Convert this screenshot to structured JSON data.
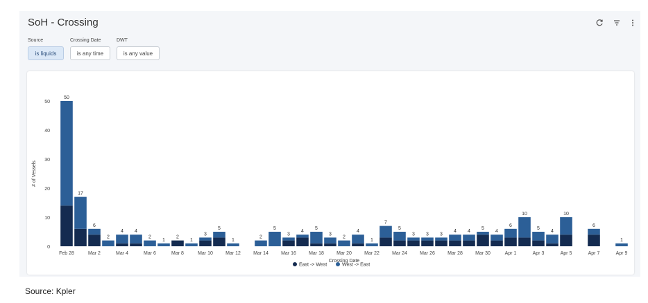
{
  "dashboard": {
    "title": "SoH - Crossing",
    "toolbar": {
      "refresh_icon": "refresh-icon",
      "filter_icon": "filter-icon",
      "menu_icon": "more-vert-icon"
    },
    "filters": [
      {
        "label": "Source",
        "value": "is liquids",
        "active": true
      },
      {
        "label": "Crossing Date",
        "value": "is any time",
        "active": false
      },
      {
        "label": "DWT",
        "value": "is any value",
        "active": false
      }
    ]
  },
  "source_note": "Source: Kpler",
  "chart_data": {
    "type": "bar",
    "stacked": true,
    "xlabel": "Crossing Date",
    "ylabel": "# of Vessels",
    "ylim": [
      0,
      50
    ],
    "yticks": [
      "0",
      "10",
      "20",
      "30",
      "40",
      "50"
    ],
    "colors": {
      "East -> West": "#142b50",
      "West -> East": "#2c5f97"
    },
    "legend_position": "bottom",
    "tick_labels": [
      "Feb 28",
      "Mar 2",
      "Mar 4",
      "Mar 6",
      "Mar 8",
      "Mar 10",
      "Mar 12",
      "Mar 14",
      "Mar 16",
      "Mar 18",
      "Mar 20",
      "Mar 22",
      "Mar 24",
      "Mar 26",
      "Mar 28",
      "Mar 30",
      "Apr 1",
      "Apr 3",
      "Apr 5",
      "Apr 7",
      "Apr 9"
    ],
    "categories": [
      "Feb 28",
      "Mar 1",
      "Mar 2",
      "Mar 3",
      "Mar 4",
      "Mar 5",
      "Mar 6",
      "Mar 7",
      "Mar 8",
      "Mar 9",
      "Mar 10",
      "Mar 11",
      "Mar 12",
      "Mar 13",
      "Mar 14",
      "Mar 15",
      "Mar 16",
      "Mar 17",
      "Mar 18",
      "Mar 19",
      "Mar 20",
      "Mar 21",
      "Mar 22",
      "Mar 23",
      "Mar 24",
      "Mar 25",
      "Mar 26",
      "Mar 27",
      "Mar 28",
      "Mar 29",
      "Mar 30",
      "Mar 31",
      "Apr 1",
      "Apr 2",
      "Apr 3",
      "Apr 4",
      "Apr 5",
      "Apr 6",
      "Apr 7",
      "Apr 8",
      "Apr 9"
    ],
    "totals": [
      50,
      17,
      6,
      2,
      4,
      4,
      2,
      1,
      2,
      1,
      3,
      5,
      1,
      null,
      2,
      5,
      3,
      4,
      5,
      3,
      2,
      4,
      1,
      7,
      5,
      3,
      3,
      3,
      4,
      4,
      5,
      4,
      6,
      10,
      5,
      4,
      10,
      null,
      6,
      null,
      1
    ],
    "series": [
      {
        "name": "East -> West",
        "values": [
          14,
          6,
          4,
          0,
          1,
          1,
          0,
          0,
          2,
          0,
          2,
          3,
          0,
          0,
          0,
          0,
          2,
          3,
          1,
          1,
          0,
          1,
          0,
          3,
          2,
          2,
          2,
          2,
          2,
          2,
          4,
          2,
          3,
          3,
          2,
          1,
          4,
          0,
          4,
          0,
          0
        ]
      },
      {
        "name": "West -> East",
        "values": [
          36,
          11,
          2,
          2,
          3,
          3,
          2,
          1,
          0,
          1,
          1,
          2,
          1,
          0,
          2,
          5,
          1,
          1,
          4,
          2,
          2,
          3,
          1,
          4,
          3,
          1,
          1,
          1,
          2,
          2,
          1,
          2,
          3,
          7,
          3,
          3,
          6,
          0,
          2,
          0,
          1
        ]
      }
    ]
  }
}
